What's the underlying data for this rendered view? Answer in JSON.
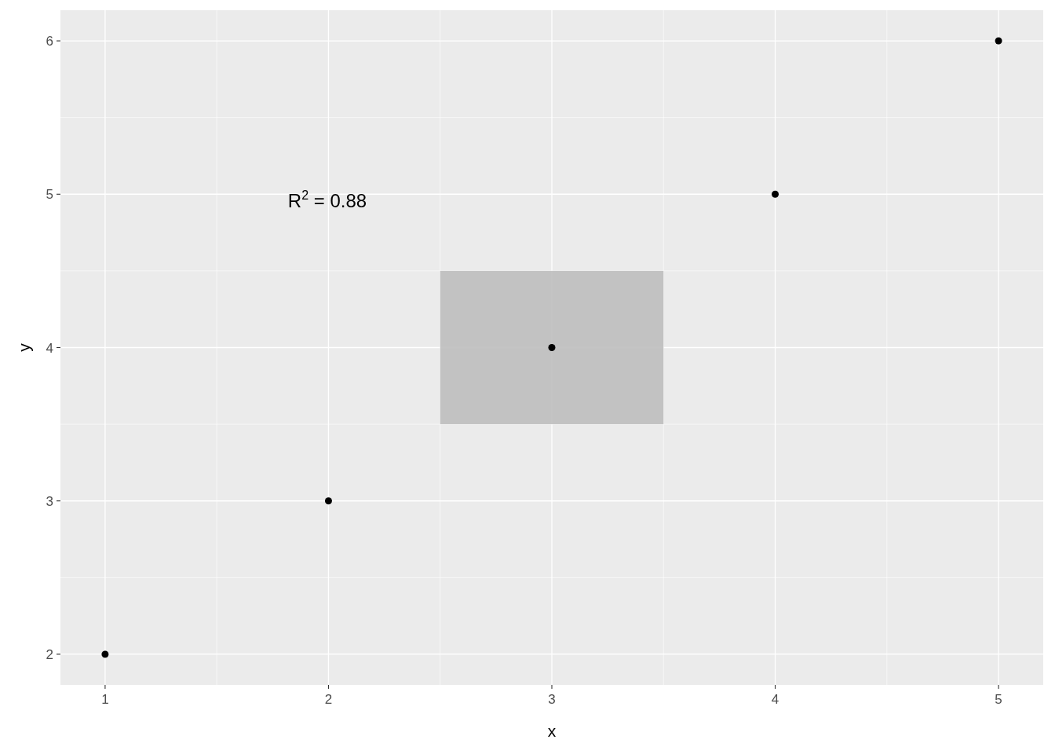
{
  "chart_data": {
    "type": "scatter",
    "xlabel": "x",
    "ylabel": "y",
    "x": [
      1,
      2,
      3,
      4,
      5
    ],
    "series": [
      {
        "type": "bar",
        "x": [
          3
        ],
        "base": [
          3.5
        ],
        "color": "#bebebe",
        "values": [
          1
        ]
      },
      {
        "color": "#000000",
        "values": [
          2,
          3,
          4,
          5,
          6
        ]
      }
    ],
    "xlim": [
      0.8,
      5.2
    ],
    "ylim": [
      1.8,
      6.2
    ],
    "xticks": [
      1,
      2,
      3,
      4,
      5
    ],
    "yticks": [
      2,
      3,
      4,
      5,
      6
    ],
    "grid": true,
    "marker": "circle",
    "annotations": [
      "R$^{2}$ = 0.88"
    ]
  }
}
